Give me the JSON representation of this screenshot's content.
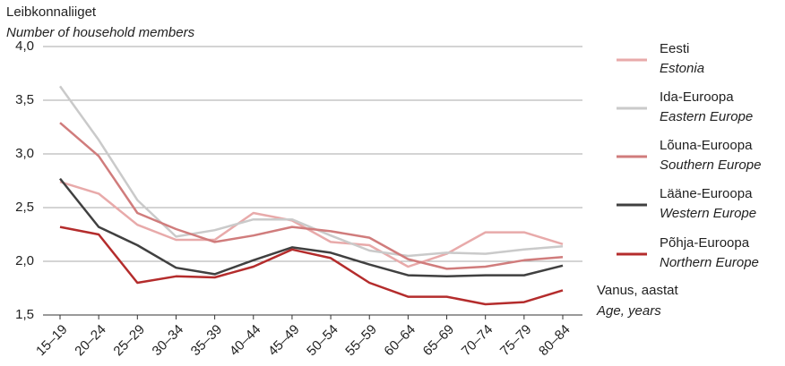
{
  "chart_data": {
    "type": "line",
    "y_title": "Leibkonnaliiget",
    "y_title_en": "Number of household members",
    "x_title": "Vanus, aastat",
    "x_title_en": "Age, years",
    "categories": [
      "15–19",
      "20–24",
      "25–29",
      "30–34",
      "35–39",
      "40–44",
      "45–49",
      "50–54",
      "55–59",
      "60–64",
      "65–69",
      "70–74",
      "75–79",
      "80–84"
    ],
    "ylim": [
      1.5,
      4.0
    ],
    "yticks": [
      {
        "value": 1.5,
        "label": "1,5"
      },
      {
        "value": 2.0,
        "label": "2,0"
      },
      {
        "value": 2.5,
        "label": "2,5"
      },
      {
        "value": 3.0,
        "label": "3,0"
      },
      {
        "value": 3.5,
        "label": "3,5"
      },
      {
        "value": 4.0,
        "label": "4,0"
      }
    ],
    "grid": true,
    "series": [
      {
        "name": "Eesti",
        "name_en": "Estonia",
        "color": "#e8aaaa",
        "values": [
          2.74,
          2.63,
          2.34,
          2.2,
          2.2,
          2.45,
          2.38,
          2.18,
          2.15,
          1.95,
          2.07,
          2.27,
          2.27,
          2.16
        ]
      },
      {
        "name": "Ida-Euroopa",
        "name_en": "Eastern Europe",
        "color": "#cacaca",
        "values": [
          3.63,
          3.13,
          2.57,
          2.23,
          2.29,
          2.39,
          2.39,
          2.24,
          2.1,
          2.05,
          2.08,
          2.07,
          2.11,
          2.14
        ]
      },
      {
        "name": "Lõuna-Euroopa",
        "name_en": "Southern Europe",
        "color": "#d07c7c",
        "values": [
          3.29,
          2.98,
          2.45,
          2.3,
          2.18,
          2.24,
          2.32,
          2.28,
          2.22,
          2.02,
          1.93,
          1.95,
          2.01,
          2.04
        ]
      },
      {
        "name": "Lääne-Euroopa",
        "name_en": "Western Europe",
        "color": "#404040",
        "values": [
          2.77,
          2.32,
          2.15,
          1.94,
          1.88,
          2.01,
          2.13,
          2.08,
          1.97,
          1.87,
          1.86,
          1.87,
          1.87,
          1.96
        ]
      },
      {
        "name": "Põhja-Euroopa",
        "name_en": "Northern Europe",
        "color": "#b42c2c",
        "values": [
          2.32,
          2.25,
          1.8,
          1.86,
          1.85,
          1.95,
          2.11,
          2.03,
          1.8,
          1.67,
          1.67,
          1.6,
          1.62,
          1.73
        ]
      }
    ]
  }
}
